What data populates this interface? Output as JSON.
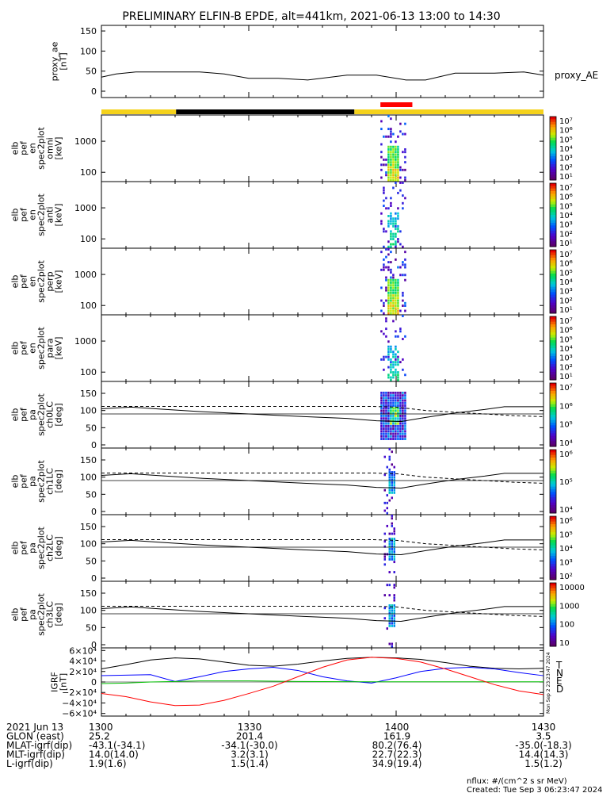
{
  "title": "PRELIMINARY ELFIN-B EPDE, alt=441km, 2021-06-13 13:00 to 14:30",
  "footer": {
    "units": "nflux: #/(cm^2 s sr MeV)",
    "created": "Created: Tue Sep  3 06:23:47 2024",
    "side_stamp": "Mon Sep 2 23:23:47 2024"
  },
  "orbit_table": {
    "rows": [
      {
        "label": "2021 Jun 13",
        "values": [
          "1300",
          "1330",
          "1400",
          "1430"
        ]
      },
      {
        "label": "GLON (east)",
        "values": [
          "25.2",
          "201.4",
          "161.9",
          "3.5"
        ]
      },
      {
        "label": "MLAT-igrf(dip)",
        "values": [
          "-43.1(-34.1)",
          "-34.1(-30.0)",
          "80.2(76.4)",
          "-35.0(-18.3)"
        ]
      },
      {
        "label": "MLT-igrf(dip)",
        "values": [
          "14.0(14.0)",
          "3.2(3.1)",
          "22.7(22.3)",
          "14.4(14.3)"
        ]
      },
      {
        "label": "L-igrf(dip)",
        "values": [
          "1.9(1.6)",
          "1.5(1.4)",
          "34.9(19.4)",
          "1.5(1.2)"
        ]
      }
    ]
  },
  "colors": {
    "sunlight": "#f5d21b",
    "shadow": "#000000",
    "science_zone": "#ff0000",
    "bfield_T": "#000000",
    "bfield_N": "#0000ff",
    "bfield_E": "#00c000",
    "bfield_D": "#ff0000"
  },
  "chart_data": [
    {
      "type": "line",
      "panel": "proxy_ae",
      "ylabel": [
        "proxy_ae",
        "[nT]"
      ],
      "yticks": [
        "150",
        "100",
        "50",
        "0"
      ],
      "ylim": [
        0,
        160
      ],
      "xlim": [
        0,
        90
      ],
      "legend": "proxy_AE",
      "x": [
        0,
        3,
        7,
        12,
        20,
        25,
        30,
        36,
        42,
        50,
        56,
        62,
        66,
        72,
        80,
        86,
        90
      ],
      "y": [
        35,
        43,
        48,
        48,
        48,
        43,
        32,
        32,
        28,
        40,
        40,
        28,
        28,
        45,
        45,
        48,
        40
      ]
    },
    {
      "type": "bar",
      "panel": "orbit_bar",
      "segments": [
        {
          "kind": "sunlight",
          "x0": 0,
          "x1": 15.2
        },
        {
          "kind": "shadow",
          "x0": 15.2,
          "x1": 51.5
        },
        {
          "kind": "sunlight",
          "x0": 51.5,
          "x1": 90
        }
      ],
      "science_zone": [
        56.8,
        63.3
      ]
    },
    {
      "type": "heatmap",
      "panel": "spec2plot omni",
      "ylabel": [
        "elb",
        "pef",
        "en",
        "spec2plot",
        "omni",
        "[keV]"
      ],
      "yticks": [
        "1000",
        "100"
      ],
      "scale": "log",
      "ylim": [
        50,
        7000
      ],
      "zlabel": "nflux",
      "cbar_ticks": [
        "10⁷",
        "10⁶",
        "10⁵",
        "10⁴",
        "10³",
        "10²",
        "10¹"
      ],
      "burst_x": [
        56.8,
        62
      ]
    },
    {
      "type": "heatmap",
      "panel": "spec2plot anti",
      "ylabel": [
        "elb",
        "pef",
        "en",
        "spec2plot",
        "anti",
        "[keV]"
      ],
      "yticks": [
        "1000",
        "100"
      ],
      "scale": "log",
      "ylim": [
        50,
        7000
      ],
      "zlabel": "nflux",
      "cbar_ticks": [
        "10⁷",
        "10⁶",
        "10⁵",
        "10⁴",
        "10³",
        "10²",
        "10¹"
      ],
      "burst_x": [
        56.8,
        62
      ]
    },
    {
      "type": "heatmap",
      "panel": "spec2plot perp",
      "ylabel": [
        "elb",
        "pef",
        "en",
        "spec2plot",
        "perp",
        "[keV]"
      ],
      "yticks": [
        "1000",
        "100"
      ],
      "scale": "log",
      "ylim": [
        50,
        7000
      ],
      "zlabel": "nflux",
      "cbar_ticks": [
        "10⁷",
        "10⁶",
        "10⁵",
        "10⁴",
        "10³",
        "10²",
        "10¹"
      ],
      "burst_x": [
        56.8,
        62
      ]
    },
    {
      "type": "heatmap",
      "panel": "spec2plot para",
      "ylabel": [
        "elb",
        "pef",
        "en",
        "spec2plot",
        "para",
        "[keV]"
      ],
      "yticks": [
        "1000",
        "100"
      ],
      "scale": "log",
      "ylim": [
        50,
        7000
      ],
      "zlabel": "nflux",
      "cbar_ticks": [
        "10⁷",
        "10⁶",
        "10⁵",
        "10⁴",
        "10³",
        "10²",
        "10¹"
      ],
      "burst_x": [
        56.8,
        62
      ]
    },
    {
      "type": "heatmap",
      "panel": "spec2plot ch0LC",
      "ylabel": [
        "elb",
        "pef",
        "pa",
        "spec2plot",
        "ch0LC",
        "[deg]"
      ],
      "yticks": [
        "150",
        "100",
        "50",
        "0"
      ],
      "ylim": [
        0,
        180
      ],
      "zlabel": "nflux",
      "cbar_ticks": [
        "10⁷",
        "10⁶",
        "10⁵",
        "10⁴"
      ],
      "burst_x": [
        56.8,
        62
      ],
      "lc_solid": [
        [
          0,
          105
        ],
        [
          6,
          110
        ],
        [
          12,
          104
        ],
        [
          20,
          97
        ],
        [
          30,
          90
        ],
        [
          40,
          83
        ],
        [
          50,
          77
        ],
        [
          56,
          70
        ],
        [
          61,
          68
        ],
        [
          66,
          80
        ],
        [
          72,
          93
        ],
        [
          78,
          103
        ],
        [
          82,
          111
        ],
        [
          90,
          111
        ]
      ],
      "lc_dashed": [
        [
          0,
          112
        ],
        [
          6,
          112
        ],
        [
          15,
          112
        ],
        [
          25,
          112
        ],
        [
          35,
          112
        ],
        [
          45,
          112
        ],
        [
          55,
          112
        ],
        [
          60,
          110
        ],
        [
          66,
          100
        ],
        [
          72,
          95
        ],
        [
          78,
          90
        ],
        [
          84,
          85
        ],
        [
          90,
          82
        ]
      ]
    },
    {
      "type": "heatmap",
      "panel": "spec2plot ch1LC",
      "ylabel": [
        "elb",
        "pef",
        "pa",
        "spec2plot",
        "ch1LC",
        "[deg]"
      ],
      "yticks": [
        "150",
        "100",
        "50",
        "0"
      ],
      "ylim": [
        0,
        180
      ],
      "zlabel": "nflux",
      "cbar_ticks": [
        "10⁶",
        "10⁵",
        "10⁴"
      ],
      "burst_x": [
        57.5,
        60
      ],
      "lc_solid": [
        [
          0,
          105
        ],
        [
          6,
          110
        ],
        [
          12,
          104
        ],
        [
          20,
          97
        ],
        [
          30,
          90
        ],
        [
          40,
          83
        ],
        [
          50,
          77
        ],
        [
          56,
          70
        ],
        [
          61,
          68
        ],
        [
          66,
          80
        ],
        [
          72,
          93
        ],
        [
          78,
          103
        ],
        [
          82,
          111
        ],
        [
          90,
          111
        ]
      ],
      "lc_dashed": [
        [
          0,
          112
        ],
        [
          6,
          112
        ],
        [
          15,
          112
        ],
        [
          25,
          112
        ],
        [
          35,
          112
        ],
        [
          45,
          112
        ],
        [
          55,
          112
        ],
        [
          60,
          110
        ],
        [
          66,
          100
        ],
        [
          72,
          95
        ],
        [
          78,
          90
        ],
        [
          84,
          85
        ],
        [
          90,
          82
        ]
      ]
    },
    {
      "type": "heatmap",
      "panel": "spec2plot ch2LC",
      "ylabel": [
        "elb",
        "pef",
        "pa",
        "spec2plot",
        "ch2LC",
        "[deg]"
      ],
      "yticks": [
        "150",
        "100",
        "50",
        "0"
      ],
      "ylim": [
        0,
        180
      ],
      "zlabel": "nflux",
      "cbar_ticks": [
        "10⁶",
        "10⁵",
        "10⁴",
        "10³",
        "10²"
      ],
      "burst_x": [
        57.5,
        60
      ],
      "lc_solid": [
        [
          0,
          105
        ],
        [
          6,
          110
        ],
        [
          12,
          104
        ],
        [
          20,
          97
        ],
        [
          30,
          90
        ],
        [
          40,
          83
        ],
        [
          50,
          77
        ],
        [
          56,
          70
        ],
        [
          61,
          68
        ],
        [
          66,
          80
        ],
        [
          72,
          93
        ],
        [
          78,
          103
        ],
        [
          82,
          111
        ],
        [
          90,
          111
        ]
      ],
      "lc_dashed": [
        [
          0,
          112
        ],
        [
          6,
          112
        ],
        [
          15,
          112
        ],
        [
          25,
          112
        ],
        [
          35,
          112
        ],
        [
          45,
          112
        ],
        [
          55,
          112
        ],
        [
          60,
          110
        ],
        [
          66,
          100
        ],
        [
          72,
          95
        ],
        [
          78,
          90
        ],
        [
          84,
          85
        ],
        [
          90,
          82
        ]
      ]
    },
    {
      "type": "heatmap",
      "panel": "spec2plot ch3LC",
      "ylabel": [
        "elb",
        "pef",
        "pa",
        "spec2plot",
        "ch3LC",
        "[deg]"
      ],
      "yticks": [
        "150",
        "100",
        "50",
        "0"
      ],
      "ylim": [
        0,
        180
      ],
      "zlabel": "nflux",
      "cbar_ticks": [
        "10000",
        "1000",
        "100",
        "10"
      ],
      "burst_x": [
        57.5,
        60
      ],
      "lc_solid": [
        [
          0,
          105
        ],
        [
          6,
          110
        ],
        [
          12,
          104
        ],
        [
          20,
          97
        ],
        [
          30,
          90
        ],
        [
          40,
          83
        ],
        [
          50,
          77
        ],
        [
          56,
          70
        ],
        [
          61,
          68
        ],
        [
          66,
          80
        ],
        [
          72,
          93
        ],
        [
          78,
          103
        ],
        [
          82,
          111
        ],
        [
          90,
          111
        ]
      ],
      "lc_dashed": [
        [
          0,
          112
        ],
        [
          6,
          112
        ],
        [
          15,
          112
        ],
        [
          25,
          112
        ],
        [
          35,
          112
        ],
        [
          45,
          112
        ],
        [
          55,
          112
        ],
        [
          60,
          110
        ],
        [
          66,
          100
        ],
        [
          72,
          95
        ],
        [
          78,
          90
        ],
        [
          84,
          85
        ],
        [
          90,
          82
        ]
      ]
    },
    {
      "type": "line",
      "panel": "IGRF",
      "ylabel": [
        "IGRF",
        "[nT]"
      ],
      "yticks": [
        "6×10⁴",
        "4×10⁴",
        "2×10⁴",
        "0",
        "−2×10⁴",
        "−4×10⁴",
        "−6×10⁴"
      ],
      "ylim": [
        -65000,
        65000
      ],
      "xlim": [
        0,
        90
      ],
      "legend": [
        "T",
        "N",
        "E",
        "D"
      ],
      "series": [
        {
          "name": "T",
          "x": [
            0,
            5,
            10,
            15,
            20,
            25,
            30,
            35,
            40,
            45,
            50,
            55,
            60,
            65,
            70,
            75,
            80,
            85,
            90
          ],
          "y": [
            25000,
            33000,
            42000,
            46000,
            44000,
            38000,
            32000,
            30000,
            34000,
            40000,
            45000,
            47000,
            46000,
            43000,
            37000,
            30000,
            26000,
            25000,
            26000
          ]
        },
        {
          "name": "N",
          "x": [
            0,
            5,
            10,
            15,
            20,
            25,
            30,
            35,
            40,
            45,
            50,
            55,
            60,
            65,
            70,
            75,
            80,
            85,
            90
          ],
          "y": [
            12000,
            13000,
            14000,
            1000,
            10000,
            20000,
            25000,
            28000,
            22000,
            10000,
            2000,
            -2000,
            8000,
            20000,
            26000,
            28000,
            25000,
            18000,
            12000
          ]
        },
        {
          "name": "E",
          "x": [
            0,
            5,
            10,
            15,
            20,
            25,
            30,
            35,
            40,
            45,
            50,
            55,
            60,
            65,
            70,
            75,
            80,
            85,
            90
          ],
          "y": [
            -3000,
            -2000,
            0,
            1000,
            2000,
            2000,
            2000,
            1500,
            1000,
            800,
            500,
            400,
            300,
            300,
            300,
            300,
            300,
            300,
            300
          ]
        },
        {
          "name": "D",
          "x": [
            0,
            5,
            10,
            15,
            20,
            25,
            30,
            35,
            40,
            45,
            50,
            55,
            60,
            65,
            70,
            75,
            80,
            85,
            90
          ],
          "y": [
            -22000,
            -28000,
            -38000,
            -45000,
            -44000,
            -35000,
            -22000,
            -8000,
            10000,
            28000,
            42000,
            47000,
            45000,
            38000,
            25000,
            10000,
            -5000,
            -17000,
            -24000
          ]
        }
      ]
    }
  ]
}
